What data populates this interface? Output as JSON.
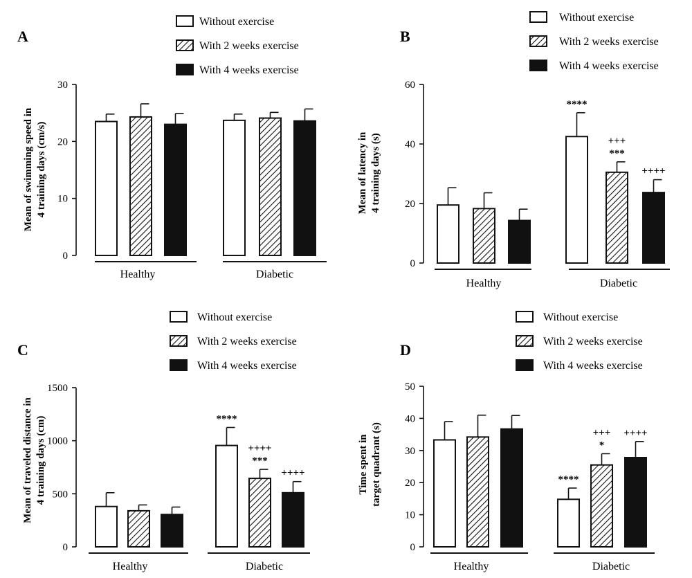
{
  "legend": {
    "items": [
      {
        "label": "Without exercise",
        "fill": "white"
      },
      {
        "label": "With 2 weeks exercise",
        "fill": "hatch"
      },
      {
        "label": "With 4 weeks exercise",
        "fill": "black"
      }
    ]
  },
  "colors": {
    "black": "#111111",
    "white": "#ffffff"
  },
  "chart_data": [
    {
      "panel": "A",
      "type": "bar",
      "ylabel": [
        "Mean of swimming speed in",
        "4 training days (cm/s)"
      ],
      "categories": [
        "Healthy",
        "Diabetic"
      ],
      "ylim": [
        0,
        30
      ],
      "yticks": [
        0,
        10,
        20,
        30
      ],
      "series": [
        {
          "name": "Without exercise",
          "values": [
            23.5,
            23.7
          ],
          "errors": [
            1.3,
            1.1
          ]
        },
        {
          "name": "With 2 weeks exercise",
          "values": [
            24.3,
            24.1
          ],
          "errors": [
            2.3,
            1.0
          ]
        },
        {
          "name": "With 4 weeks exercise",
          "values": [
            23.0,
            23.6
          ],
          "errors": [
            1.9,
            2.1
          ]
        }
      ],
      "annotations": []
    },
    {
      "panel": "B",
      "type": "bar",
      "ylabel": [
        "Mean of latency in",
        "4 training days (s)"
      ],
      "categories": [
        "Healthy",
        "Diabetic"
      ],
      "ylim": [
        0,
        60
      ],
      "yticks": [
        0,
        20,
        40,
        60
      ],
      "series": [
        {
          "name": "Without exercise",
          "values": [
            19.5,
            42.5
          ],
          "errors": [
            5.8,
            8.0
          ]
        },
        {
          "name": "With 2 weeks exercise",
          "values": [
            18.3,
            30.5
          ],
          "errors": [
            5.3,
            3.5
          ]
        },
        {
          "name": "With 4 weeks exercise",
          "values": [
            14.3,
            23.7
          ],
          "errors": [
            3.8,
            4.3
          ]
        }
      ],
      "annotations": [
        {
          "group": 1,
          "series": 0,
          "lines": [
            "****"
          ]
        },
        {
          "group": 1,
          "series": 1,
          "lines": [
            "+++",
            "***"
          ]
        },
        {
          "group": 1,
          "series": 2,
          "lines": [
            "++++"
          ]
        }
      ]
    },
    {
      "panel": "C",
      "type": "bar",
      "ylabel": [
        "Mean of traveled distance in",
        "4 training days (cm)"
      ],
      "categories": [
        "Healthy",
        "Diabetic"
      ],
      "ylim": [
        0,
        1500
      ],
      "yticks": [
        0,
        500,
        1000,
        1500
      ],
      "series": [
        {
          "name": "Without exercise",
          "values": [
            380,
            955
          ],
          "errors": [
            130,
            170
          ]
        },
        {
          "name": "With 2 weeks exercise",
          "values": [
            340,
            645
          ],
          "errors": [
            55,
            85
          ]
        },
        {
          "name": "With 4 weeks exercise",
          "values": [
            305,
            510
          ],
          "errors": [
            70,
            105
          ]
        }
      ],
      "annotations": [
        {
          "group": 1,
          "series": 0,
          "lines": [
            "****"
          ]
        },
        {
          "group": 1,
          "series": 1,
          "lines": [
            "++++",
            "***"
          ]
        },
        {
          "group": 1,
          "series": 2,
          "lines": [
            "++++"
          ]
        }
      ]
    },
    {
      "panel": "D",
      "type": "bar",
      "ylabel": [
        "Time spent in",
        "target quadrant (s)"
      ],
      "categories": [
        "Healthy",
        "Diabetic"
      ],
      "ylim": [
        0,
        50
      ],
      "yticks": [
        0,
        10,
        20,
        30,
        40,
        50
      ],
      "series": [
        {
          "name": "Without exercise",
          "values": [
            33.3,
            14.8
          ],
          "errors": [
            5.7,
            3.5
          ]
        },
        {
          "name": "With 2 weeks exercise",
          "values": [
            34.2,
            25.5
          ],
          "errors": [
            6.8,
            3.5
          ]
        },
        {
          "name": "With 4 weeks exercise",
          "values": [
            36.7,
            27.8
          ],
          "errors": [
            4.2,
            5.0
          ]
        }
      ],
      "annotations": [
        {
          "group": 1,
          "series": 0,
          "lines": [
            "****"
          ]
        },
        {
          "group": 1,
          "series": 1,
          "lines": [
            "+++",
            "*"
          ]
        },
        {
          "group": 1,
          "series": 2,
          "lines": [
            "++++"
          ]
        }
      ]
    }
  ]
}
